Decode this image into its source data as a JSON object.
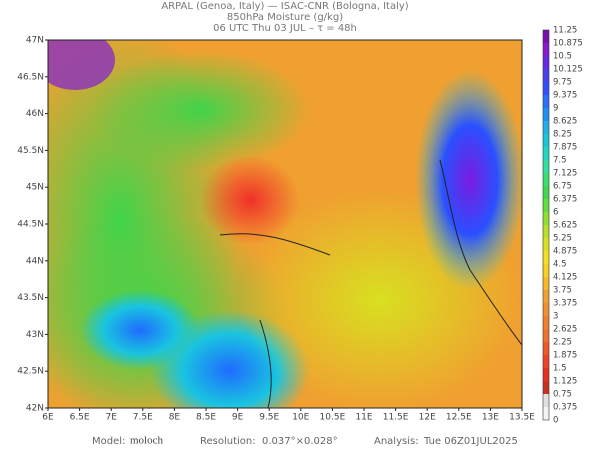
{
  "header": {
    "line1": "ARPAL (Genoa, Italy)  —  ISAC-CNR (Bologna, Italy)",
    "line2": "850hPa Moisture (g/kg)",
    "line3": "06 UTC Thu 03 JUL  –  τ = 48h"
  },
  "latitude_labels": [
    "47N",
    "46.5N",
    "46N",
    "45.5N",
    "45N",
    "44.5N",
    "44N",
    "43.5N",
    "43N",
    "42.5N",
    "42N"
  ],
  "longitude_labels": [
    "6E",
    "6.5E",
    "7E",
    "7.5E",
    "8E",
    "8.5E",
    "9E",
    "9.5E",
    "10E",
    "10.5E",
    "11E",
    "11.5E",
    "12E",
    "12.5E",
    "13E",
    "13.5E"
  ],
  "colorbar_labels": [
    "11.25",
    "10.875",
    "10.5",
    "10.125",
    "9.75",
    "9.375",
    "9",
    "8.625",
    "8.25",
    "7.875",
    "7.5",
    "7.125",
    "6.75",
    "6.375",
    "6",
    "5.625",
    "5.25",
    "4.875",
    "4.5",
    "4.125",
    "3.75",
    "3.375",
    "3",
    "2.625",
    "2.25",
    "1.875",
    "1.5",
    "1.125",
    "0.75",
    "0.375",
    "0"
  ],
  "footer": {
    "model_label": "Model:",
    "model": "moloch",
    "resolution_label": "Resolution:",
    "resolution": "0.037°×0.028°",
    "analysis_label": "Analysis:",
    "analysis": "Tue 06Z01JUL2025"
  }
}
